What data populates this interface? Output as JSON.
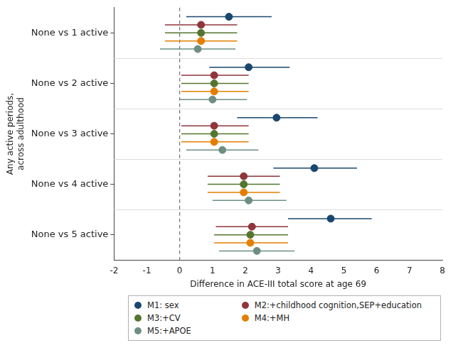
{
  "chart_data": {
    "type": "forest",
    "orientation": "horizontal",
    "y_label": [
      "Any active periods,",
      "across adulthood"
    ],
    "x_label": "Difference in ACE-III total score at age 69",
    "categories": [
      "None vs 1 active",
      "None vs 2 active",
      "None vs 3 active",
      "None vs 4 active",
      "None vs 5 active"
    ],
    "xlim": [
      -2,
      8
    ],
    "xticks": [
      -2,
      -1,
      0,
      1,
      2,
      3,
      4,
      5,
      6,
      7,
      8
    ],
    "grid": false,
    "reference_line": 0,
    "legend": "bottom",
    "series": [
      {
        "name": "M1: sex",
        "color": "#1a476f",
        "marker": "circle",
        "values": [
          1.5,
          2.1,
          2.95,
          4.1,
          4.6
        ],
        "ci_low": [
          0.2,
          0.9,
          1.75,
          2.85,
          3.3
        ],
        "ci_high": [
          2.8,
          3.35,
          4.2,
          5.4,
          5.85
        ]
      },
      {
        "name": "M2:+childhood cognition,SEP+education",
        "color": "#90353b",
        "marker": "circle",
        "values": [
          0.65,
          1.05,
          1.05,
          1.95,
          2.2
        ],
        "ci_low": [
          -0.45,
          0.05,
          0.05,
          0.85,
          1.1
        ],
        "ci_high": [
          1.75,
          2.1,
          2.1,
          3.05,
          3.3
        ]
      },
      {
        "name": "M3:+CV",
        "color": "#55752f",
        "marker": "circle",
        "values": [
          0.65,
          1.05,
          1.05,
          1.95,
          2.15
        ],
        "ci_low": [
          -0.45,
          0.05,
          0.05,
          0.85,
          1.05
        ],
        "ci_high": [
          1.75,
          2.1,
          2.1,
          3.05,
          3.3
        ]
      },
      {
        "name": "M4:+MH",
        "color": "#e37e00",
        "marker": "circle",
        "values": [
          0.65,
          1.05,
          1.05,
          1.95,
          2.15
        ],
        "ci_low": [
          -0.45,
          0.05,
          0.05,
          0.85,
          1.05
        ],
        "ci_high": [
          1.75,
          2.1,
          2.1,
          3.05,
          3.3
        ]
      },
      {
        "name": "M5:+APOE",
        "color": "#6e8e84",
        "marker": "circle",
        "values": [
          0.55,
          1.0,
          1.3,
          2.1,
          2.35
        ],
        "ci_low": [
          -0.6,
          0.0,
          0.2,
          1.0,
          1.2
        ],
        "ci_high": [
          1.7,
          2.05,
          2.4,
          3.25,
          3.5
        ]
      }
    ]
  }
}
